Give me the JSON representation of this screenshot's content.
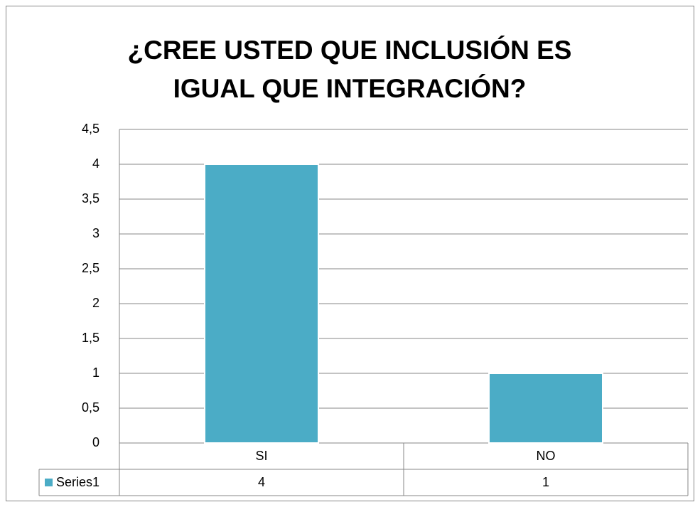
{
  "chart_data": {
    "type": "bar",
    "title": "¿CREE USTED QUE INCLUSIÓN ES IGUAL QUE INTEGRACIÓN?",
    "categories": [
      "SI",
      "NO"
    ],
    "series": [
      {
        "name": "Series1",
        "color": "#4bacc6",
        "values": [
          4,
          1
        ]
      }
    ],
    "ylim": [
      0,
      4.5
    ],
    "yticks": [
      0,
      {
        "value": 0.5,
        "label": "0,5"
      },
      1,
      {
        "value": 1.5,
        "label": "1,5"
      },
      2,
      {
        "value": 2.5,
        "label": "2,5"
      },
      3,
      {
        "value": 3.5,
        "label": "3,5"
      },
      4,
      {
        "value": 4.5,
        "label": "4,5"
      }
    ],
    "grid": true
  }
}
